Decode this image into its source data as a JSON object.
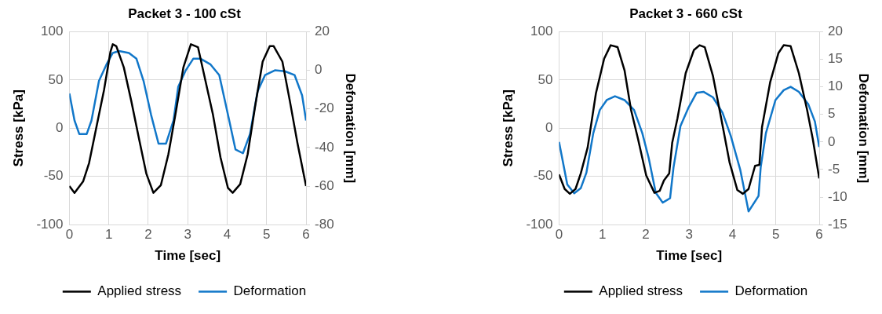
{
  "chart_data": [
    {
      "type": "line",
      "title": "Packet 3 - 100 cSt",
      "xlabel": "Time [sec]",
      "ylabel": "Stress [kPa]",
      "y2label": "Defomation [mm]",
      "xlim": [
        0,
        6
      ],
      "xticks": [
        0,
        1,
        2,
        3,
        4,
        5,
        6
      ],
      "ylim": [
        -100,
        100
      ],
      "yticks": [
        -100,
        -50,
        0,
        50,
        100
      ],
      "y2lim": [
        -80,
        20
      ],
      "y2ticks": [
        -80,
        -60,
        -40,
        -20,
        0,
        20
      ],
      "grid": true,
      "legend": "bottom",
      "marker": "none",
      "line_style": "solid",
      "series": [
        {
          "name": "Applied stress",
          "color": "#000000",
          "x": [
            0,
            0.13,
            0.35,
            0.5,
            0.69,
            0.88,
            1.04,
            1.1,
            1.19,
            1.38,
            1.57,
            1.76,
            1.95,
            2.13,
            2.32,
            2.51,
            2.7,
            2.89,
            3.08,
            3.26,
            3.45,
            3.64,
            3.83,
            4.02,
            4.14,
            4.33,
            4.52,
            4.71,
            4.9,
            5.08,
            5.18,
            5.4,
            5.59,
            5.78,
            6
          ],
          "values": [
            -60,
            -67,
            -55,
            -36,
            2,
            40,
            79,
            87,
            85,
            63,
            28,
            -10,
            -47,
            -67,
            -59,
            -27,
            17,
            63,
            87,
            84,
            49,
            14,
            -30,
            -62,
            -67,
            -58,
            -27,
            23,
            69,
            85,
            85,
            69,
            28,
            -15,
            -60
          ]
        },
        {
          "name": "Deformation",
          "color": "#1177c9",
          "axis": "y2",
          "x": [
            0,
            0.13,
            0.25,
            0.44,
            0.56,
            0.75,
            0.94,
            1.1,
            1.26,
            1.51,
            1.7,
            1.88,
            2.07,
            2.26,
            2.45,
            2.64,
            2.76,
            2.95,
            3.14,
            3.33,
            3.58,
            3.8,
            4.02,
            4.21,
            4.4,
            4.58,
            4.77,
            4.96,
            5.21,
            5.46,
            5.71,
            5.9,
            6
          ],
          "values": [
            -12,
            -26,
            -33,
            -33,
            -26,
            -5.5,
            3,
            9,
            10,
            9,
            6,
            -5.5,
            -23,
            -38,
            -38,
            -26,
            -8.5,
            0,
            6,
            6,
            3,
            -2.5,
            -23,
            -41,
            -43,
            -33,
            -11,
            -2.5,
            0,
            -0.5,
            -2.5,
            -13,
            -26
          ]
        }
      ]
    },
    {
      "type": "line",
      "title": "Packet 3 - 660 cSt",
      "xlabel": "Time [sec]",
      "ylabel": "Stress [kPa]",
      "y2label": "Defomation [mm]",
      "xlim": [
        0,
        6
      ],
      "xticks": [
        0,
        1,
        2,
        3,
        4,
        5,
        6
      ],
      "ylim": [
        -100,
        100
      ],
      "yticks": [
        -100,
        -50,
        0,
        50,
        100
      ],
      "y2lim": [
        -15,
        20
      ],
      "y2ticks": [
        -15,
        -10,
        -5,
        0,
        5,
        10,
        15,
        20
      ],
      "grid": true,
      "legend": "bottom",
      "marker": "none",
      "line_style": "solid",
      "series": [
        {
          "name": "Applied stress",
          "color": "#000000",
          "x": [
            0,
            0.13,
            0.25,
            0.38,
            0.5,
            0.66,
            0.85,
            1.04,
            1.19,
            1.35,
            1.51,
            1.66,
            1.82,
            2.01,
            2.2,
            2.32,
            2.42,
            2.54,
            2.61,
            2.73,
            2.92,
            3.11,
            3.24,
            3.36,
            3.55,
            3.74,
            3.93,
            4.11,
            4.24,
            4.37,
            4.52,
            4.62,
            4.68,
            4.87,
            5.06,
            5.18,
            5.34,
            5.53,
            5.72,
            5.85,
            6
          ],
          "values": [
            -48,
            -63,
            -68,
            -63,
            -47,
            -20,
            36,
            72,
            86,
            84,
            60,
            19,
            -11,
            -49,
            -67,
            -65,
            -54,
            -47,
            -15,
            10,
            57,
            81,
            86,
            84,
            54,
            10,
            -35,
            -64,
            -68,
            -63,
            -39,
            -38,
            1,
            48,
            78,
            86,
            85,
            57,
            19,
            -11,
            -52
          ]
        },
        {
          "name": "Deformation",
          "color": "#1177c9",
          "axis": "y2",
          "x": [
            0,
            0.19,
            0.35,
            0.5,
            0.63,
            0.79,
            0.94,
            1.1,
            1.29,
            1.51,
            1.73,
            1.92,
            2.07,
            2.23,
            2.39,
            2.56,
            2.64,
            2.8,
            2.99,
            3.17,
            3.33,
            3.55,
            3.77,
            3.96,
            4.18,
            4.3,
            4.37,
            4.6,
            4.65,
            4.77,
            4.99,
            5.18,
            5.34,
            5.53,
            5.75,
            5.9,
            6
          ],
          "values": [
            0,
            -7.7,
            -9.3,
            -8.4,
            -5.6,
            1.6,
            5.8,
            7.6,
            8.3,
            7.6,
            5.8,
            1.6,
            -3,
            -9.2,
            -11,
            -10.2,
            -4.6,
            2.9,
            6.3,
            8.9,
            9.1,
            8.1,
            5.3,
            1.1,
            -5.1,
            -9.8,
            -12.6,
            -9.8,
            -4.6,
            1.6,
            7.6,
            9.4,
            10,
            9.1,
            6.8,
            3.7,
            -0.9
          ]
        }
      ]
    }
  ]
}
